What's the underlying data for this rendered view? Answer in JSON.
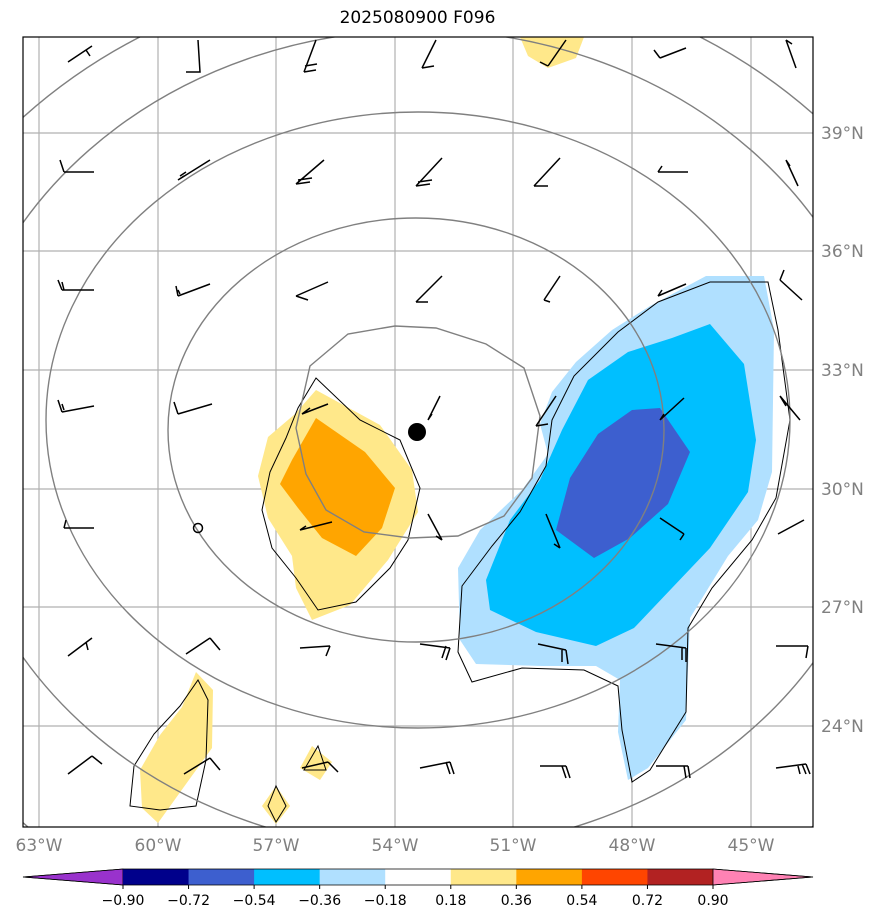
{
  "title": "2025080900 F096",
  "map": {
    "lon_labels": [
      "63°W",
      "60°W",
      "57°W",
      "54°W",
      "51°W",
      "48°W",
      "45°W"
    ],
    "lat_labels": [
      "39°N",
      "36°N",
      "33°N",
      "30°N",
      "27°N",
      "24°N"
    ],
    "marker_center": {
      "lon": -53.6,
      "lat": 31.4
    },
    "marker_small": {
      "lon": -58.9,
      "lat": 29.0
    }
  },
  "colorbar": {
    "ticks": [
      "−0.90",
      "−0.72",
      "−0.54",
      "−0.36",
      "−0.18",
      "0.18",
      "0.36",
      "0.54",
      "0.72",
      "0.90"
    ],
    "colors": [
      "#9932cc",
      "#00008b",
      "#3d5fcf",
      "#00bfff",
      "#b0e0ff",
      "#ffffff",
      "#ffe88a",
      "#ffa500",
      "#ff4500",
      "#b22222",
      "#ff82b4"
    ]
  },
  "shading_colors": {
    "light_yellow": "#ffe88a",
    "orange": "#ffa500",
    "light_blue": "#b0e0ff",
    "deep_sky_blue": "#00bfff",
    "royal_blue": "#3d5fcf"
  }
}
